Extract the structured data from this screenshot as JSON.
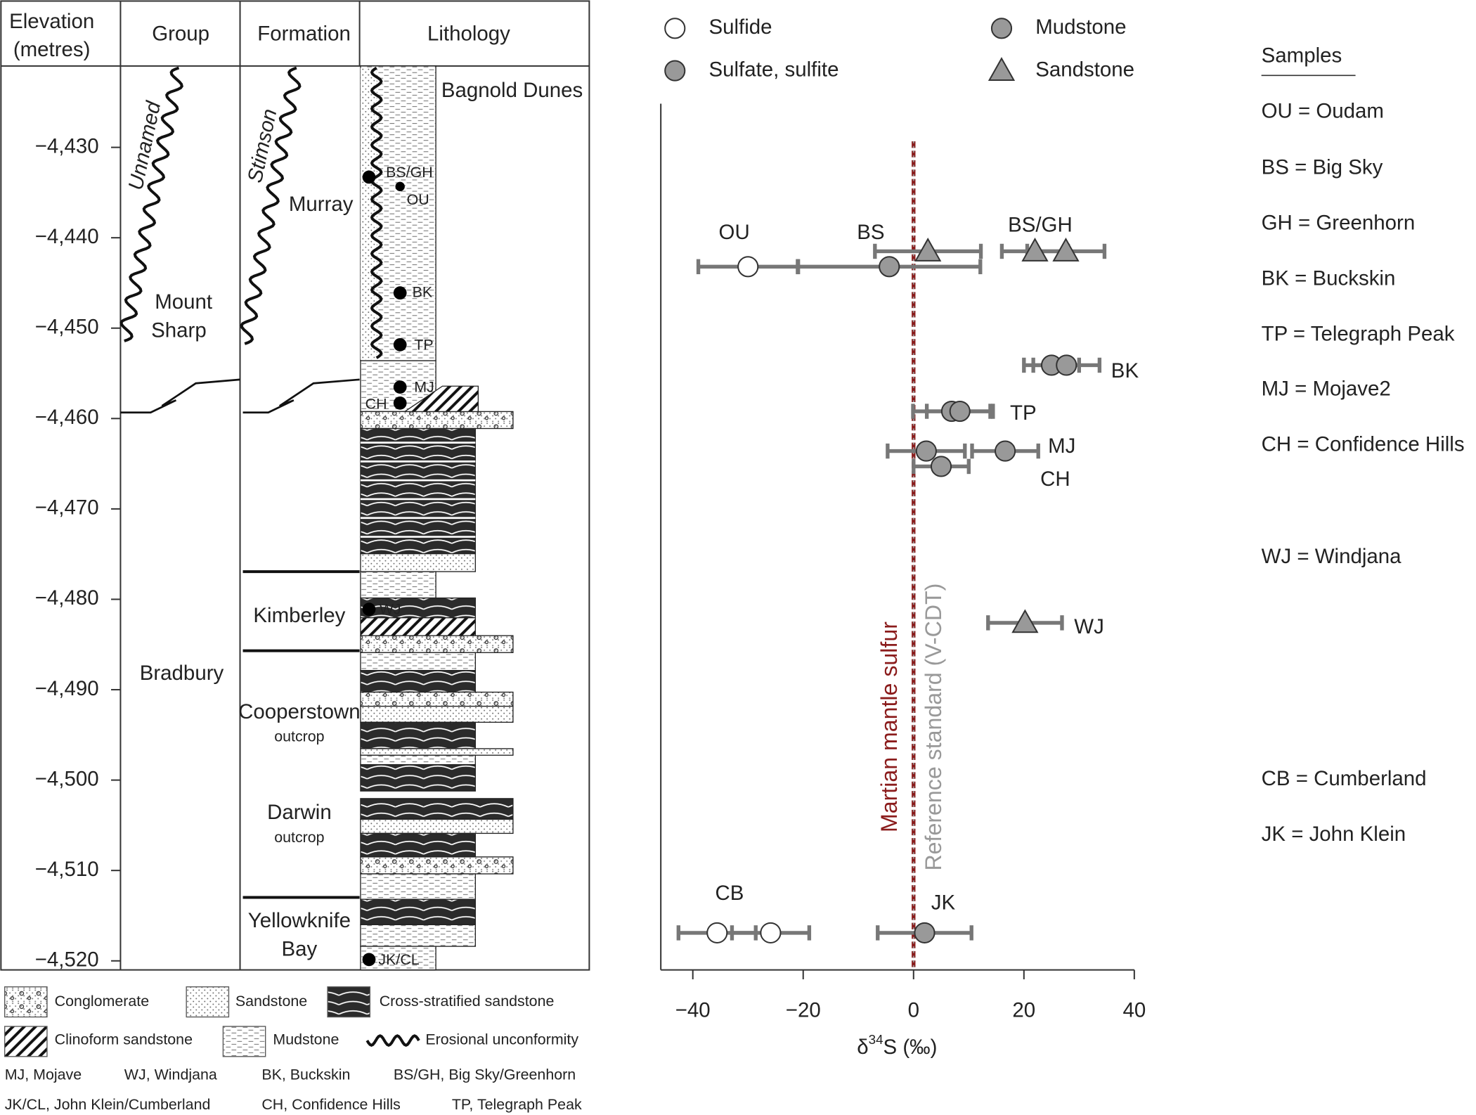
{
  "stratigraphic_column": {
    "headers": {
      "elevation": [
        "Elevation",
        "(metres)"
      ],
      "group": "Group",
      "formation": "Formation",
      "lithology": "Lithology"
    },
    "groups": {
      "unnamed": "Unnamed",
      "mount_sharp": [
        "Mount",
        "Sharp"
      ],
      "bradbury": "Bradbury"
    },
    "formations": {
      "stimson": "Stimson",
      "murray": "Murray",
      "kimberley": "Kimberley",
      "cooperstown": [
        "Cooperstown",
        "outcrop"
      ],
      "darwin": [
        "Darwin",
        "outcrop"
      ],
      "yellowknife": [
        "Yellowknife",
        "Bay"
      ]
    },
    "bagnold": "Bagnold Dunes",
    "sample_labels": [
      "BS/GH",
      "OU",
      "BK",
      "TP",
      "MJ",
      "CH",
      "WJ",
      "JK/CL"
    ],
    "legend": [
      "Conglomerate",
      "Sandstone",
      "Cross-stratified sandstone",
      "Clinoform sandstone",
      "Mudstone",
      "Erosional unconformity"
    ],
    "abbreviations": [
      "MJ, Mojave",
      "WJ, Windjana",
      "BK, Buckskin",
      "BS/GH, Big Sky/Greenhorn",
      "JK/CL, John Klein/Cumberland",
      "CH, Confidence Hills",
      "TP, Telegraph Peak"
    ]
  },
  "chart_data": {
    "type": "scatter",
    "xlabel": {
      "prefix": "δ",
      "sup": "34",
      "suffix": "S (‰)"
    },
    "xlim": [
      -45.8,
      40
    ],
    "xticks": [
      {
        "value": -40,
        "label": "−40"
      },
      {
        "value": -20,
        "label": "−20"
      },
      0,
      20,
      40
    ],
    "ylim": [
      -4421,
      -4521
    ],
    "yticks": [
      {
        "value": -4430,
        "label": "−4,430"
      },
      {
        "value": -4440,
        "label": "−4,440"
      },
      {
        "value": -4450,
        "label": "−4,450"
      },
      {
        "value": -4460,
        "label": "−4,460"
      },
      {
        "value": -4470,
        "label": "−4,470"
      },
      {
        "value": -4480,
        "label": "−4,480"
      },
      {
        "value": -4490,
        "label": "−4,490"
      },
      {
        "value": -4500,
        "label": "−4,500"
      },
      {
        "value": -4510,
        "label": "−4,510"
      },
      {
        "value": -4520,
        "label": "−4,520"
      }
    ],
    "series": [
      {
        "name": "Sulfide",
        "marker": "circle",
        "color": "#ffffff",
        "x": [
          -30,
          -35.6,
          -25.9
        ],
        "error": [
          9,
          7,
          7
        ],
        "y": [
          -4443.2,
          -4516.9,
          -4516.9
        ]
      },
      {
        "name": "Sulfate, sulfite",
        "marker": "circle",
        "color": "#999999",
        "x": [
          -4.4,
          25,
          27.7,
          6.9,
          8.4,
          2.3,
          16.6,
          5,
          2
        ],
        "error": [
          16.5,
          5,
          6,
          7,
          6,
          7,
          6,
          5,
          8.5
        ],
        "y": [
          -4443.2,
          -4454.1,
          -4454.1,
          -4459.2,
          -4459.2,
          -4463.6,
          -4463.6,
          -4465.3,
          -4516.9
        ]
      },
      {
        "name": "Mudstone",
        "marker": "circle",
        "color": "#999999"
      },
      {
        "name": "Sandstone",
        "marker": "triangle",
        "color": "#999999",
        "x": [
          2.6,
          22,
          27.6,
          20.2
        ],
        "error": [
          9.6,
          6,
          7,
          6.7
        ],
        "y": [
          -4441.5,
          -4441.5,
          -4441.5,
          -4482.6
        ]
      }
    ],
    "reference_lines": [
      {
        "value": 0,
        "label": "Martian mantle sulfur",
        "color": "#8b1c1c"
      },
      {
        "value": 0,
        "label": "Reference standard (V-CDT)",
        "color": "#999999"
      }
    ],
    "annotations": [
      "OU",
      "BS",
      "BS/GH",
      "BK",
      "TP",
      "MJ",
      "CH",
      "WJ",
      "CB",
      "JK"
    ]
  },
  "samples": {
    "title": "Samples",
    "items": [
      "OU = Oudam",
      "BS = Big Sky",
      "GH = Greenhorn",
      "BK = Buckskin",
      "TP = Telegraph Peak",
      "MJ = Mojave2",
      "CH = Confidence Hills",
      "WJ = Windjana",
      "CB = Cumberland",
      "JK = John Klein"
    ]
  }
}
